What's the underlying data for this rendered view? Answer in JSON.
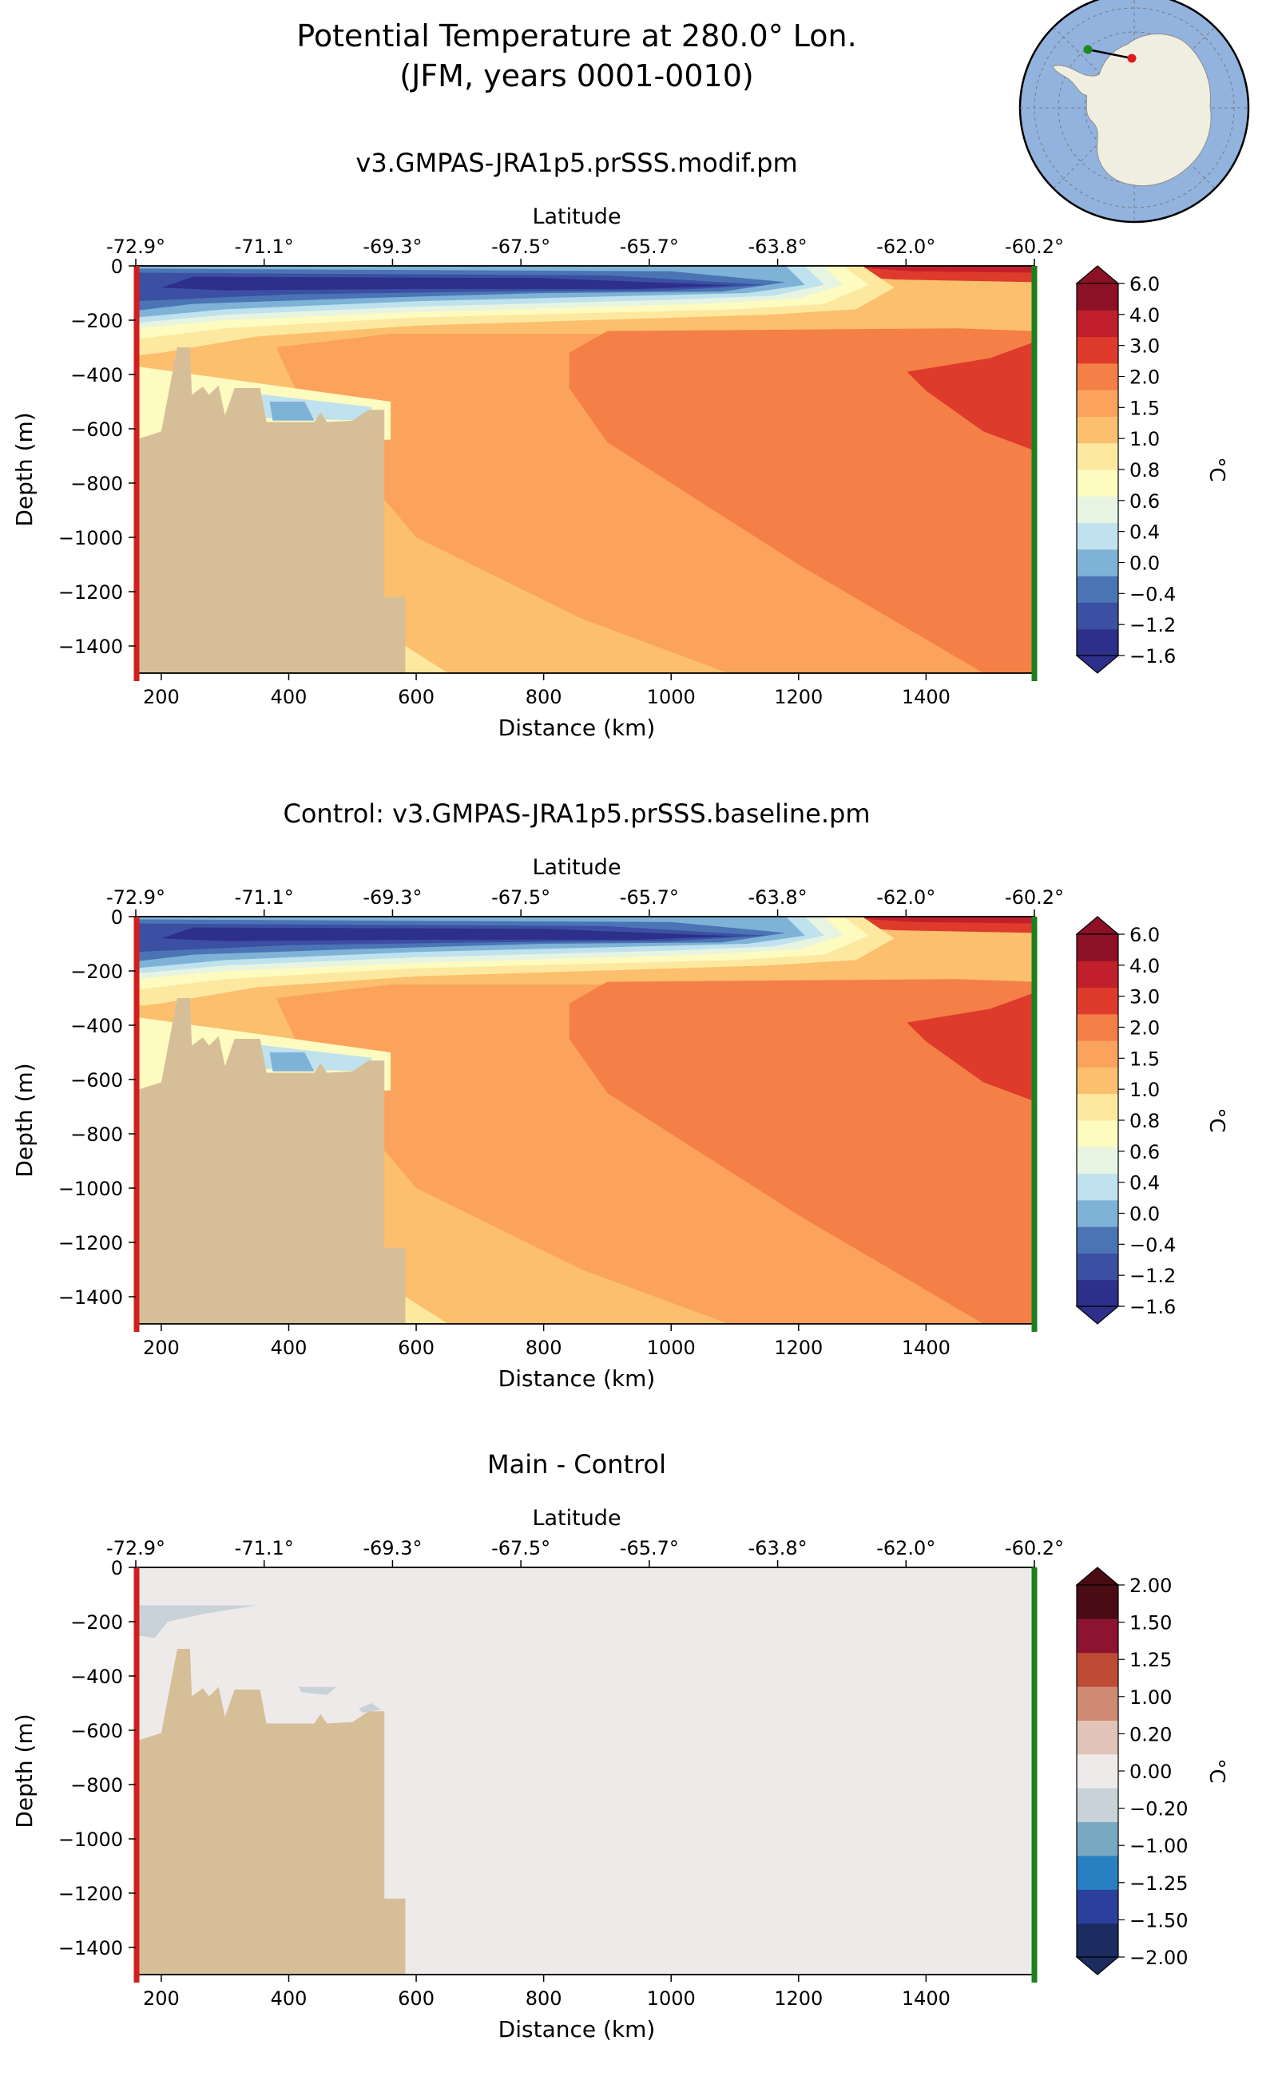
{
  "figure": {
    "title_line1": "Potential Temperature at 280.0° Lon.",
    "title_line2": "(JFM, years 0001-0010)"
  },
  "inset_map": {
    "region": "Antarctica",
    "section_longitude": "280.0° Lon."
  },
  "colors": {
    "land": "#d6bf98",
    "start_marker": "#d11f1f",
    "end_marker": "#1d7f1d",
    "temp_levels": [
      "#2d2f8a",
      "#3b4fa3",
      "#4b74b5",
      "#7eb2d6",
      "#bfe2ee",
      "#e7f4e2",
      "#fdfbc0",
      "#fde8a0",
      "#fbbf6e",
      "#fba35c",
      "#f47f47",
      "#de3b2c",
      "#c21f2c",
      "#8c1125"
    ],
    "diff_levels": [
      "#1c2b60",
      "#2b3f9c",
      "#2880c3",
      "#79a9c2",
      "#c8d2d8",
      "#efeaea",
      "#e2c3b8",
      "#cf8a74",
      "#bd4b36",
      "#8d1430",
      "#4a0c14"
    ]
  },
  "colorbars": {
    "temperature": {
      "label": "°C",
      "ticks": [
        "6.0",
        "4.0",
        "3.0",
        "2.0",
        "1.5",
        "1.0",
        "0.8",
        "0.6",
        "0.4",
        "0.0",
        "−0.4",
        "−1.2",
        "−1.6"
      ]
    },
    "difference": {
      "label": "°C",
      "ticks": [
        "2.00",
        "1.50",
        "1.25",
        "1.00",
        "0.20",
        "0.00",
        "−0.20",
        "−1.00",
        "−1.25",
        "−1.50",
        "−2.00"
      ]
    }
  },
  "chart_data": [
    {
      "type": "contour",
      "title": "v3.GMPAS-JRA1p5.prSSS.modif.pm",
      "xlabel": "Distance (km)",
      "ylabel": "Depth (m)",
      "top_xlabel": "Latitude",
      "xlim": [
        160,
        1570
      ],
      "ylim": [
        -1500,
        0
      ],
      "x_ticks": [
        "200",
        "400",
        "600",
        "800",
        "1000",
        "1200",
        "1400"
      ],
      "y_ticks": [
        "0",
        "−200",
        "−400",
        "−600",
        "−800",
        "−1000",
        "−1200",
        "−1400"
      ],
      "lat_ticks": [
        "-72.9°",
        "-71.1°",
        "-69.3°",
        "-67.5°",
        "-65.7°",
        "-63.8°",
        "-62.0°",
        "-60.2°"
      ],
      "colorbar_range": [
        -1.6,
        6.0
      ],
      "features": {
        "cold_surface_layer_depth_m": [
          0,
          200
        ],
        "cold_core_min_C": -1.6,
        "warm_core_max_C": 4.0,
        "shelf_edge_km": 550
      }
    },
    {
      "type": "contour",
      "title": "Control: v3.GMPAS-JRA1p5.prSSS.baseline.pm",
      "xlabel": "Distance (km)",
      "ylabel": "Depth (m)",
      "top_xlabel": "Latitude",
      "xlim": [
        160,
        1570
      ],
      "ylim": [
        -1500,
        0
      ],
      "x_ticks": [
        "200",
        "400",
        "600",
        "800",
        "1000",
        "1200",
        "1400"
      ],
      "y_ticks": [
        "0",
        "−200",
        "−400",
        "−600",
        "−800",
        "−1000",
        "−1200",
        "−1400"
      ],
      "lat_ticks": [
        "-72.9°",
        "-71.1°",
        "-69.3°",
        "-67.5°",
        "-65.7°",
        "-63.8°",
        "-62.0°",
        "-60.2°"
      ],
      "colorbar_range": [
        -1.6,
        6.0
      ]
    },
    {
      "type": "contour",
      "title": "Main - Control",
      "xlabel": "Distance (km)",
      "ylabel": "Depth (m)",
      "top_xlabel": "Latitude",
      "xlim": [
        160,
        1570
      ],
      "ylim": [
        -1500,
        0
      ],
      "x_ticks": [
        "200",
        "400",
        "600",
        "800",
        "1000",
        "1200",
        "1400"
      ],
      "y_ticks": [
        "0",
        "−200",
        "−400",
        "−600",
        "−800",
        "−1000",
        "−1200",
        "−1400"
      ],
      "lat_ticks": [
        "-72.9°",
        "-71.1°",
        "-69.3°",
        "-67.5°",
        "-65.7°",
        "-63.8°",
        "-62.0°",
        "-60.2°"
      ],
      "colorbar_range": [
        -2.0,
        2.0
      ],
      "features": {
        "background_value_C": 0.0,
        "small_negative_patches_C": -0.2
      }
    }
  ]
}
